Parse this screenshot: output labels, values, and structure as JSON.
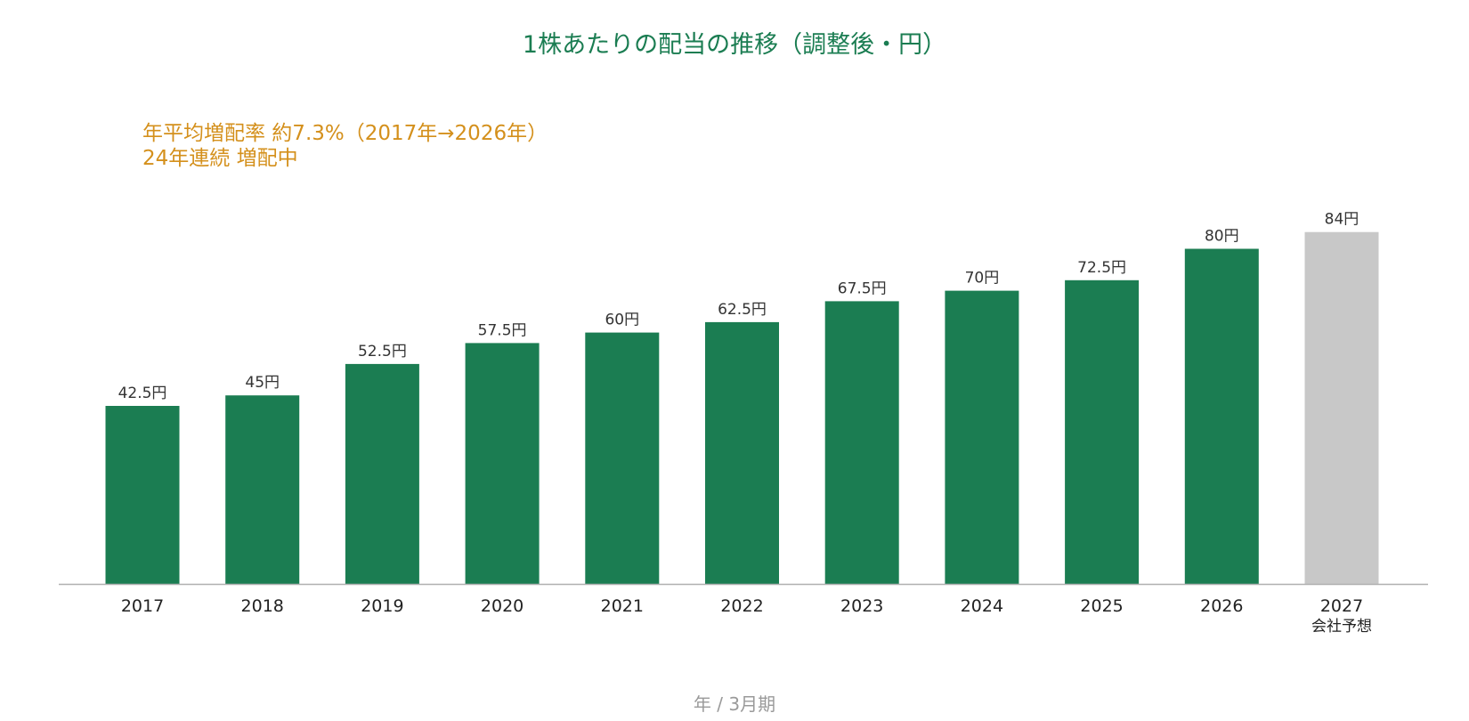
{
  "chart_data": {
    "type": "bar",
    "title": "1株あたりの配当の推移（調整後・円）",
    "xlabel": "年 / 3月期",
    "ylabel": "",
    "ylim": [
      0,
      90
    ],
    "grid": false,
    "annotations": [
      "年平均増配率 約7.3%（2017年→2026年）",
      "24年連続 増配中"
    ],
    "categories": [
      "2017",
      "2018",
      "2019",
      "2020",
      "2021",
      "2022",
      "2023",
      "2024",
      "2025",
      "2026",
      "2027"
    ],
    "category_sublabels": [
      "",
      "",
      "",
      "",
      "",
      "",
      "",
      "",
      "",
      "",
      "会社予想"
    ],
    "values": [
      42.5,
      45,
      52.5,
      57.5,
      60,
      62.5,
      67.5,
      70,
      72.5,
      80,
      84
    ],
    "data_labels": [
      "42.5円",
      "45円",
      "52.5円",
      "57.5円",
      "60円",
      "62.5円",
      "67.5円",
      "70円",
      "72.5円",
      "80円",
      "84円"
    ],
    "colors": {
      "actual": "#1b7d52",
      "forecast": "#c8c8c8",
      "title": "#1b7d52",
      "annotation": "#d4901c",
      "axis": "#b0b0b0",
      "data_label": "#333333",
      "tick_label": "#222222",
      "xlabel": "#9a9a9a"
    },
    "forecast_index": [
      10
    ]
  }
}
